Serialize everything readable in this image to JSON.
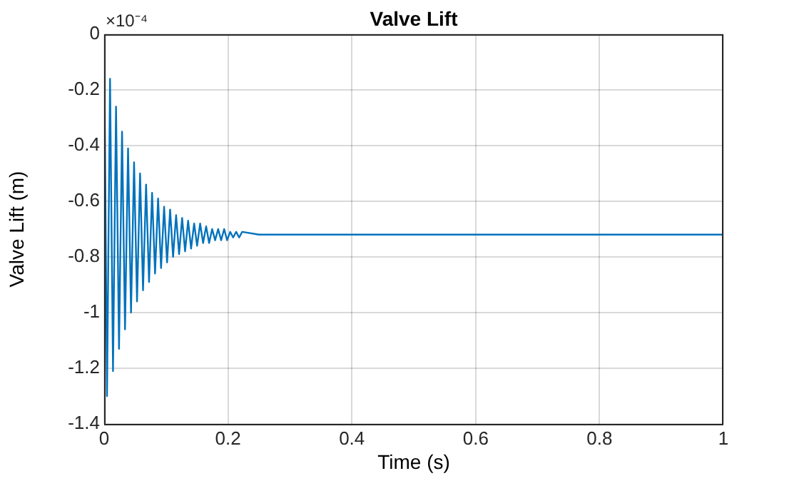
{
  "chart_data": {
    "type": "line",
    "title": "Valve Lift",
    "xlabel": "Time (s)",
    "ylabel": "Valve Lift (m)",
    "annotations": [
      "×10⁻⁴"
    ],
    "x": [
      0,
      0.0046,
      0.0095,
      0.0143,
      0.0192,
      0.024,
      0.0289,
      0.0337,
      0.0386,
      0.0434,
      0.0483,
      0.0531,
      0.058,
      0.0628,
      0.0677,
      0.0725,
      0.0774,
      0.0822,
      0.0871,
      0.0919,
      0.0968,
      0.1016,
      0.1065,
      0.1113,
      0.1162,
      0.121,
      0.1259,
      0.1307,
      0.1356,
      0.1404,
      0.1453,
      0.1501,
      0.155,
      0.1598,
      0.1647,
      0.1695,
      0.1744,
      0.1792,
      0.1841,
      0.1889,
      0.1938,
      0.1986,
      0.2035,
      0.2083,
      0.2132,
      0.218,
      0.2229,
      0.25,
      1
    ],
    "values": [
      0,
      -1.3,
      -0.16,
      -1.21,
      -0.26,
      -1.13,
      -0.35,
      -1.06,
      -0.41,
      -1.0,
      -0.46,
      -0.96,
      -0.5,
      -0.92,
      -0.54,
      -0.89,
      -0.57,
      -0.86,
      -0.59,
      -0.84,
      -0.62,
      -0.82,
      -0.63,
      -0.8,
      -0.65,
      -0.79,
      -0.66,
      -0.78,
      -0.67,
      -0.77,
      -0.68,
      -0.76,
      -0.68,
      -0.75,
      -0.69,
      -0.75,
      -0.7,
      -0.74,
      -0.7,
      -0.74,
      -0.7,
      -0.74,
      -0.71,
      -0.73,
      -0.71,
      -0.73,
      -0.71,
      -0.72,
      -0.72
    ],
    "color": "#0072bd",
    "xlim": [
      0,
      1
    ],
    "xticks": [
      0,
      0.2,
      0.4,
      0.6,
      0.8,
      1
    ],
    "ylim": [
      -1.4,
      0
    ],
    "yticks": [
      -1.4,
      -1.2,
      -1,
      -0.8,
      -0.6,
      -0.4,
      -0.2,
      0
    ],
    "grid": true,
    "legend": false,
    "marker": "none",
    "line_style": "solid"
  }
}
